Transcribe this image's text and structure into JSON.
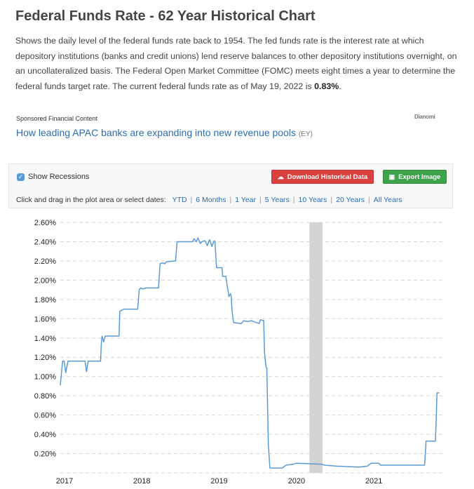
{
  "header": {
    "title": "Federal Funds Rate - 62 Year Historical Chart",
    "description": "Shows the daily level of the federal funds rate back to 1954. The fed funds rate is the interest rate at which depository institutions (banks and credit unions) lend reserve balances to other depository institutions overnight, on an uncollateralized basis. The Federal Open Market Committee (FOMC) meets eight times a year to determine the federal funds target rate. The current federal funds rate as of May 19, 2022 is",
    "current_rate": "0.83%",
    "description_end": "."
  },
  "sponsored": {
    "label": "Sponsored Financial Content",
    "brand": "Dianomi",
    "link_text": "How leading APAC banks are expanding into new revenue pools",
    "link_source": "(EY)"
  },
  "toolbar": {
    "show_recessions_label": "Show Recessions",
    "show_recessions_checked": true,
    "download_label": "Download Historical Data",
    "export_label": "Export Image",
    "download_color": "#d9413f",
    "export_color": "#3ea34a",
    "date_prompt": "Click and drag in the plot area or select dates:",
    "ranges": [
      "YTD",
      "6 Months",
      "1 Year",
      "5 Years",
      "10 Years",
      "20 Years",
      "All Years"
    ]
  },
  "chart_data": {
    "type": "line",
    "line_color": "#5b9bd5",
    "recession_color": "#d3d3d3",
    "y_ticks": [
      "0.20%",
      "0.40%",
      "0.60%",
      "0.80%",
      "1.00%",
      "1.20%",
      "1.40%",
      "1.60%",
      "1.80%",
      "2.00%",
      "2.20%",
      "2.40%",
      "2.60%"
    ],
    "x_ticks": [
      "2017",
      "2018",
      "2019",
      "2020",
      "2021"
    ],
    "ylim": [
      0,
      2.6
    ],
    "xlim": [
      2016.93,
      2021.88
    ],
    "grid": true,
    "recession": [
      2020.15,
      2020.32
    ],
    "series": [
      {
        "points": [
          [
            2016.93,
            0.91
          ],
          [
            2016.96,
            1.16
          ],
          [
            2016.98,
            1.16
          ],
          [
            2017.0,
            1.04
          ],
          [
            2017.03,
            1.16
          ],
          [
            2017.25,
            1.16
          ],
          [
            2017.27,
            1.05
          ],
          [
            2017.29,
            1.16
          ],
          [
            2017.41,
            1.16
          ],
          [
            2017.45,
            1.16
          ],
          [
            2017.46,
            1.34
          ],
          [
            2017.47,
            1.42
          ],
          [
            2017.49,
            1.36
          ],
          [
            2017.51,
            1.42
          ],
          [
            2017.69,
            1.42
          ],
          [
            2017.7,
            1.68
          ],
          [
            2017.73,
            1.69
          ],
          [
            2017.75,
            1.7
          ],
          [
            2017.93,
            1.7
          ],
          [
            2017.95,
            1.9
          ],
          [
            2017.97,
            1.92
          ],
          [
            2018.0,
            1.91
          ],
          [
            2018.04,
            1.92
          ],
          [
            2018.2,
            1.92
          ],
          [
            2018.22,
            2.17
          ],
          [
            2018.25,
            2.18
          ],
          [
            2018.28,
            2.17
          ],
          [
            2018.3,
            2.19
          ],
          [
            2018.42,
            2.2
          ],
          [
            2018.44,
            2.4
          ],
          [
            2018.64,
            2.4
          ],
          [
            2018.66,
            2.43
          ],
          [
            2018.69,
            2.4
          ],
          [
            2018.71,
            2.44
          ],
          [
            2018.74,
            2.38
          ],
          [
            2018.76,
            2.4
          ],
          [
            2018.8,
            2.41
          ],
          [
            2018.83,
            2.36
          ],
          [
            2018.86,
            2.42
          ],
          [
            2018.89,
            2.35
          ],
          [
            2018.92,
            2.41
          ],
          [
            2018.93,
            2.4
          ],
          [
            2018.95,
            2.13
          ],
          [
            2019.02,
            2.13
          ],
          [
            2019.03,
            2.04
          ],
          [
            2019.07,
            2.04
          ],
          [
            2019.11,
            1.83
          ],
          [
            2019.13,
            1.86
          ],
          [
            2019.14,
            1.83
          ],
          [
            2019.15,
            1.69
          ],
          [
            2019.16,
            1.62
          ],
          [
            2019.17,
            1.56
          ],
          [
            2019.27,
            1.55
          ],
          [
            2019.3,
            1.58
          ],
          [
            2019.35,
            1.57
          ],
          [
            2019.4,
            1.58
          ],
          [
            2019.5,
            1.55
          ],
          [
            2019.52,
            1.59
          ],
          [
            2019.56,
            1.58
          ],
          [
            2019.57,
            1.25
          ],
          [
            2019.59,
            1.1
          ],
          [
            2019.6,
            1.09
          ],
          [
            2019.62,
            0.3
          ],
          [
            2019.64,
            0.05
          ],
          [
            2019.8,
            0.05
          ],
          [
            2019.85,
            0.08
          ],
          [
            2019.95,
            0.09
          ],
          [
            2019.98,
            0.1
          ],
          [
            2020.3,
            0.09
          ],
          [
            2020.35,
            0.08
          ],
          [
            2020.5,
            0.07
          ],
          [
            2020.8,
            0.06
          ],
          [
            2020.9,
            0.07
          ],
          [
            2020.95,
            0.1
          ],
          [
            2021.05,
            0.1
          ],
          [
            2021.07,
            0.08
          ],
          [
            2021.12,
            0.08
          ],
          [
            2021.5,
            0.08
          ],
          [
            2021.64,
            0.08
          ],
          [
            2021.65,
            0.2
          ],
          [
            2021.66,
            0.33
          ],
          [
            2021.78,
            0.33
          ],
          [
            2021.79,
            0.55
          ],
          [
            2021.8,
            0.83
          ],
          [
            2021.83,
            0.83
          ]
        ]
      }
    ]
  }
}
